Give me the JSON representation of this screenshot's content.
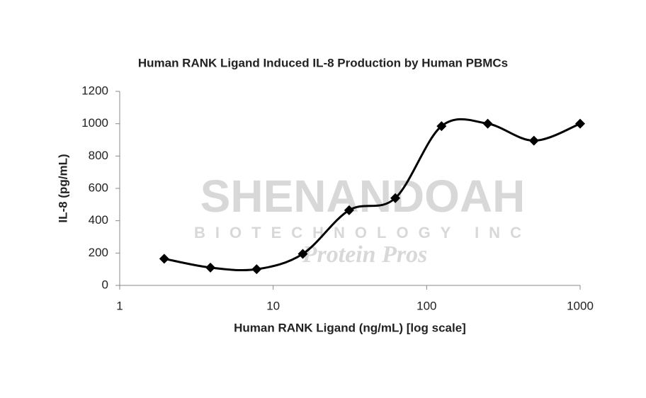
{
  "chart_data": {
    "type": "line",
    "title": "Human RANK Ligand Induced IL-8 Production by Human PBMCs",
    "x_label": "Human RANK Ligand (ng/mL) [log scale]",
    "y_label": "IL-8 (pg/mL)",
    "x": [
      1.95,
      3.9,
      7.8,
      15.6,
      31.25,
      62.5,
      125,
      250,
      500,
      1000
    ],
    "series": [
      {
        "name": "IL-8",
        "color": "#000000",
        "values": [
          165,
          110,
          100,
          195,
          465,
          540,
          985,
          1000,
          895,
          1000
        ]
      }
    ],
    "xlim": [
      1,
      1000
    ],
    "xticks": [
      1,
      10,
      100,
      1000
    ],
    "xscale": "log",
    "ylim": [
      0,
      1200
    ],
    "yticks": [
      0,
      200,
      400,
      600,
      800,
      1000,
      1200
    ],
    "grid": false,
    "watermark": [
      "SHENANDOAH",
      "BIOTECHNOLOGY INC",
      "Protein Pros"
    ]
  }
}
